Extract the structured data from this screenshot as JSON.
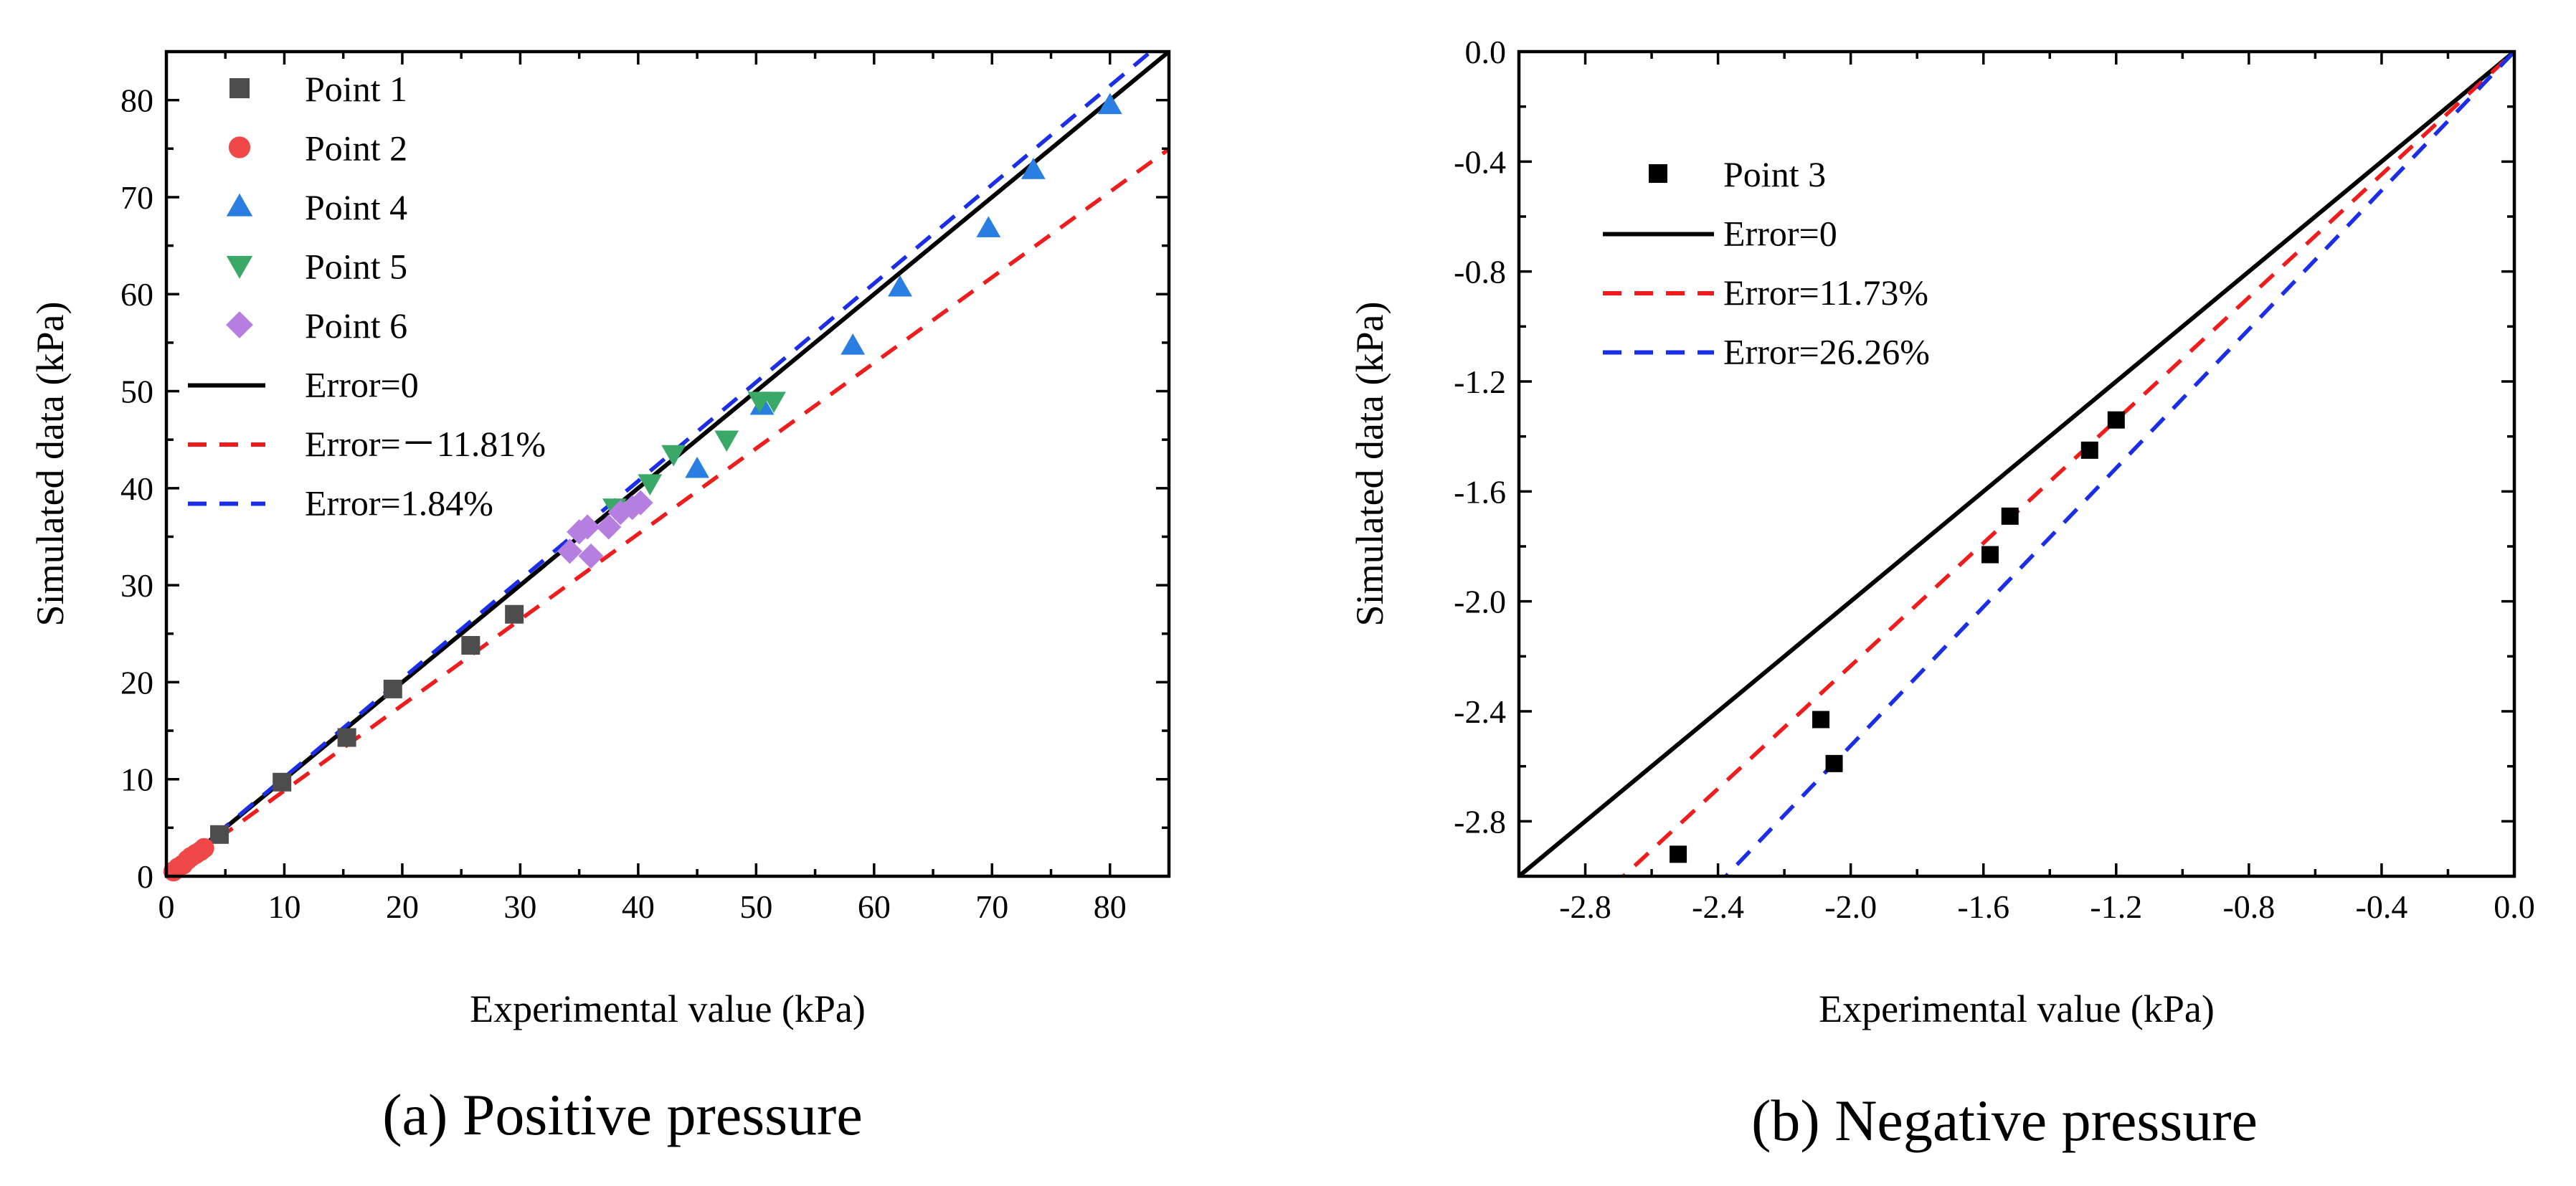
{
  "chart_data": [
    {
      "type": "scatter",
      "caption": "(a) Positive pressure",
      "xlabel": "Experimental value (kPa)",
      "ylabel": "Simulated data (kPa)",
      "xlim": [
        0,
        85
      ],
      "ylim": [
        0,
        85
      ],
      "xticks": [
        0,
        10,
        20,
        30,
        40,
        50,
        60,
        70,
        80
      ],
      "yticks": [
        0,
        10,
        20,
        30,
        40,
        50,
        60,
        70,
        80
      ],
      "tick_labels_x": [
        "0",
        "10",
        "20",
        "30",
        "40",
        "50",
        "60",
        "70",
        "80"
      ],
      "tick_labels_y": [
        "0",
        "10",
        "20",
        "30",
        "40",
        "50",
        "60",
        "70",
        "80"
      ],
      "legend_position": "top-left",
      "series": [
        {
          "name": "Point 1",
          "marker": "square",
          "color": "#4d4d4d",
          "points": [
            [
              4.5,
              4.3
            ],
            [
              9.8,
              9.7
            ],
            [
              15.3,
              14.3
            ],
            [
              19.2,
              19.3
            ],
            [
              25.8,
              23.8
            ],
            [
              29.5,
              27.0
            ]
          ]
        },
        {
          "name": "Point 2",
          "marker": "circle",
          "color": "#f04848",
          "points": [
            [
              0.6,
              0.5
            ],
            [
              1.0,
              0.9
            ],
            [
              1.4,
              1.2
            ],
            [
              1.8,
              1.7
            ],
            [
              2.1,
              2.0
            ],
            [
              2.5,
              2.3
            ],
            [
              2.9,
              2.6
            ],
            [
              3.2,
              2.9
            ]
          ]
        },
        {
          "name": "Point 4",
          "marker": "triangle-up",
          "color": "#2a7de1",
          "points": [
            [
              45.0,
              42.0
            ],
            [
              50.5,
              48.5
            ],
            [
              58.2,
              54.7
            ],
            [
              62.2,
              60.7
            ],
            [
              69.7,
              66.8
            ],
            [
              73.5,
              72.8
            ],
            [
              80.0,
              79.5
            ]
          ]
        },
        {
          "name": "Point 5",
          "marker": "triangle-down",
          "color": "#3aa866",
          "points": [
            [
              38.0,
              38.0
            ],
            [
              41.0,
              40.5
            ],
            [
              43.0,
              43.5
            ],
            [
              47.5,
              45.0
            ],
            [
              50.3,
              49.0
            ],
            [
              51.5,
              49.0
            ]
          ]
        },
        {
          "name": "Point 6",
          "marker": "diamond",
          "color": "#b57ee0",
          "points": [
            [
              34.2,
              33.5
            ],
            [
              35.0,
              35.5
            ],
            [
              35.7,
              36.0
            ],
            [
              36.0,
              33.0
            ],
            [
              37.5,
              36.0
            ],
            [
              38.5,
              37.5
            ],
            [
              39.5,
              38.0
            ],
            [
              40.2,
              38.5
            ]
          ]
        }
      ],
      "lines": [
        {
          "name": "Error=0",
          "style": "solid",
          "color": "#000000",
          "slope": 1.0
        },
        {
          "name": "Error=－11.81%",
          "style": "dashed",
          "color": "#ee1c1c",
          "slope": 0.8819
        },
        {
          "name": "Error=1.84%",
          "style": "dashed",
          "color": "#1a2ee8",
          "slope": 1.0184
        }
      ]
    },
    {
      "type": "scatter",
      "caption": "(b) Negative pressure",
      "xlabel": "Experimental value (kPa)",
      "ylabel": "Simulated data (kPa)",
      "xlim": [
        -3.0,
        0.0
      ],
      "ylim": [
        -3.0,
        0.0
      ],
      "xticks": [
        -2.8,
        -2.4,
        -2.0,
        -1.6,
        -1.2,
        -0.8,
        -0.4,
        0.0
      ],
      "yticks": [
        0.0,
        -0.4,
        -0.8,
        -1.2,
        -1.6,
        -2.0,
        -2.4,
        -2.8
      ],
      "tick_labels_x": [
        "-2.8",
        "-2.4",
        "-2.0",
        "-1.6",
        "-1.2",
        "-0.8",
        "-0.4",
        "0.0"
      ],
      "tick_labels_y": [
        "0.0",
        "-0.4",
        "-0.8",
        "-1.2",
        "-1.6",
        "-2.0",
        "-2.4",
        "-2.8"
      ],
      "legend_position": "top-left",
      "series": [
        {
          "name": "Point 3",
          "marker": "square",
          "color": "#000000",
          "points": [
            [
              -2.52,
              -2.92
            ],
            [
              -2.09,
              -2.43
            ],
            [
              -2.05,
              -2.59
            ],
            [
              -1.58,
              -1.83
            ],
            [
              -1.52,
              -1.69
            ],
            [
              -1.28,
              -1.45
            ],
            [
              -1.2,
              -1.34
            ]
          ]
        }
      ],
      "lines": [
        {
          "name": "Error=0",
          "style": "solid",
          "color": "#000000",
          "slope": 1.0
        },
        {
          "name": "Error=11.73%",
          "style": "dashed",
          "color": "#ee1c1c",
          "slope": 1.1173
        },
        {
          "name": "Error=26.26%",
          "style": "dashed",
          "color": "#1a2ee8",
          "slope": 1.2626
        }
      ]
    }
  ]
}
